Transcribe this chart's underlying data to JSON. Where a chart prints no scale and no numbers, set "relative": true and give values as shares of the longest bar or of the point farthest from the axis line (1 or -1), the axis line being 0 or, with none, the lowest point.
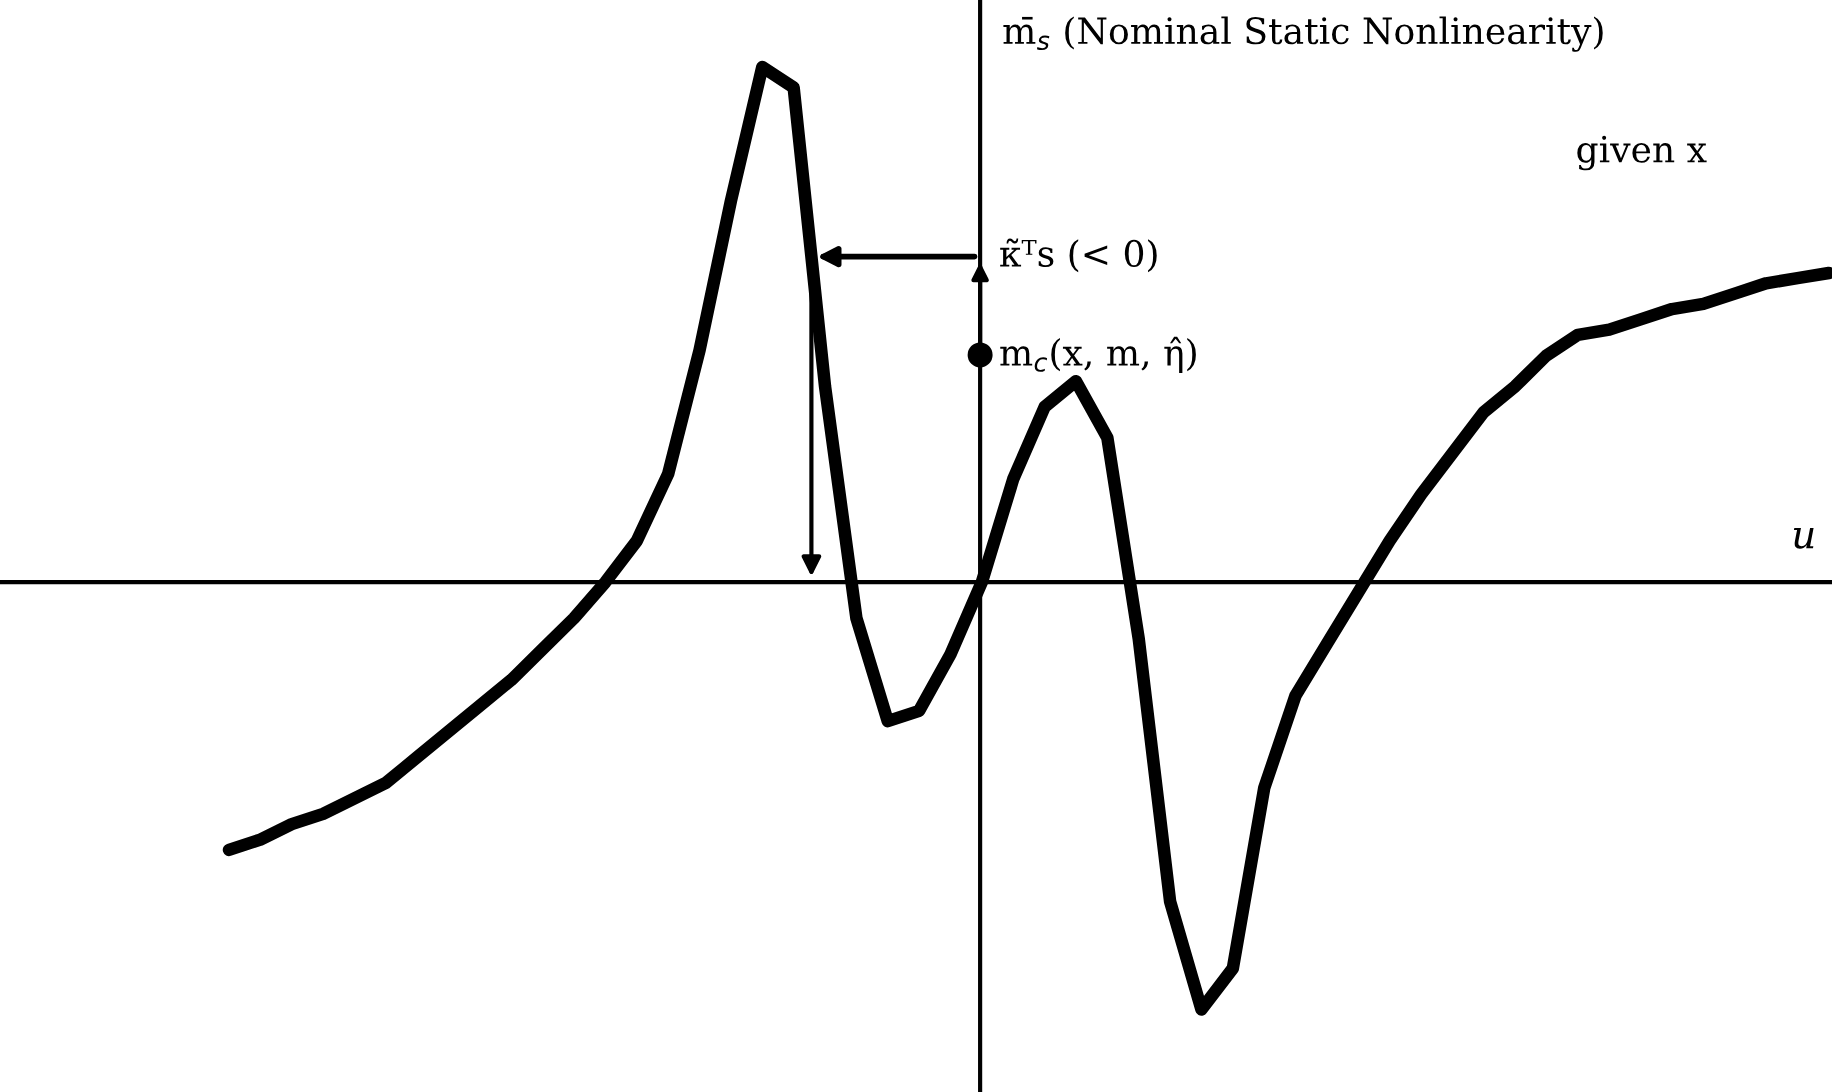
{
  "chart_data": {
    "type": "line",
    "relative": true,
    "xlabel": "u",
    "ylabel": "m̄$_{s}$ (Nominal Static Nonlinearity)",
    "categories": [
      null,
      null,
      null,
      null,
      null,
      null,
      null,
      null,
      null,
      null,
      null,
      null,
      null,
      null,
      null,
      null,
      null,
      null,
      null,
      null,
      null,
      null,
      null,
      null,
      null,
      null,
      null,
      null,
      null,
      null,
      null,
      null,
      null,
      null,
      null,
      null,
      null,
      null,
      null,
      null,
      null,
      null,
      null,
      null,
      null,
      null,
      null,
      null,
      null,
      null,
      null,
      null
    ],
    "series": [
      {
        "color": "#000000",
        "values": [
          -0.52,
          -0.5,
          -0.47,
          -0.45,
          -0.42,
          -0.39,
          -0.34,
          -0.29,
          -0.24,
          -0.19,
          -0.13,
          -0.07,
          0.0,
          0.08,
          0.21,
          0.45,
          0.74,
          1,
          0.96,
          0.38,
          -0.07,
          -0.27,
          -0.25,
          -0.14,
          0,
          0.2,
          0.34,
          0.39,
          0.28,
          -0.11,
          -0.62,
          -0.83,
          -0.75,
          -0.4,
          -0.22,
          -0.12,
          -0.02,
          0.08,
          0.17,
          0.25,
          0.33,
          0.38,
          0.44,
          0.48,
          0.49,
          0.51,
          0.53,
          0.54,
          0.56,
          0.58,
          0.59,
          0.6
        ]
      }
    ],
    "annotations": [
      "given x",
      "κ̃ᵀs (< 0)",
      "m$_{c}$(x, m, η̂)"
    ],
    "marker": "none",
    "line_style": "solid"
  }
}
